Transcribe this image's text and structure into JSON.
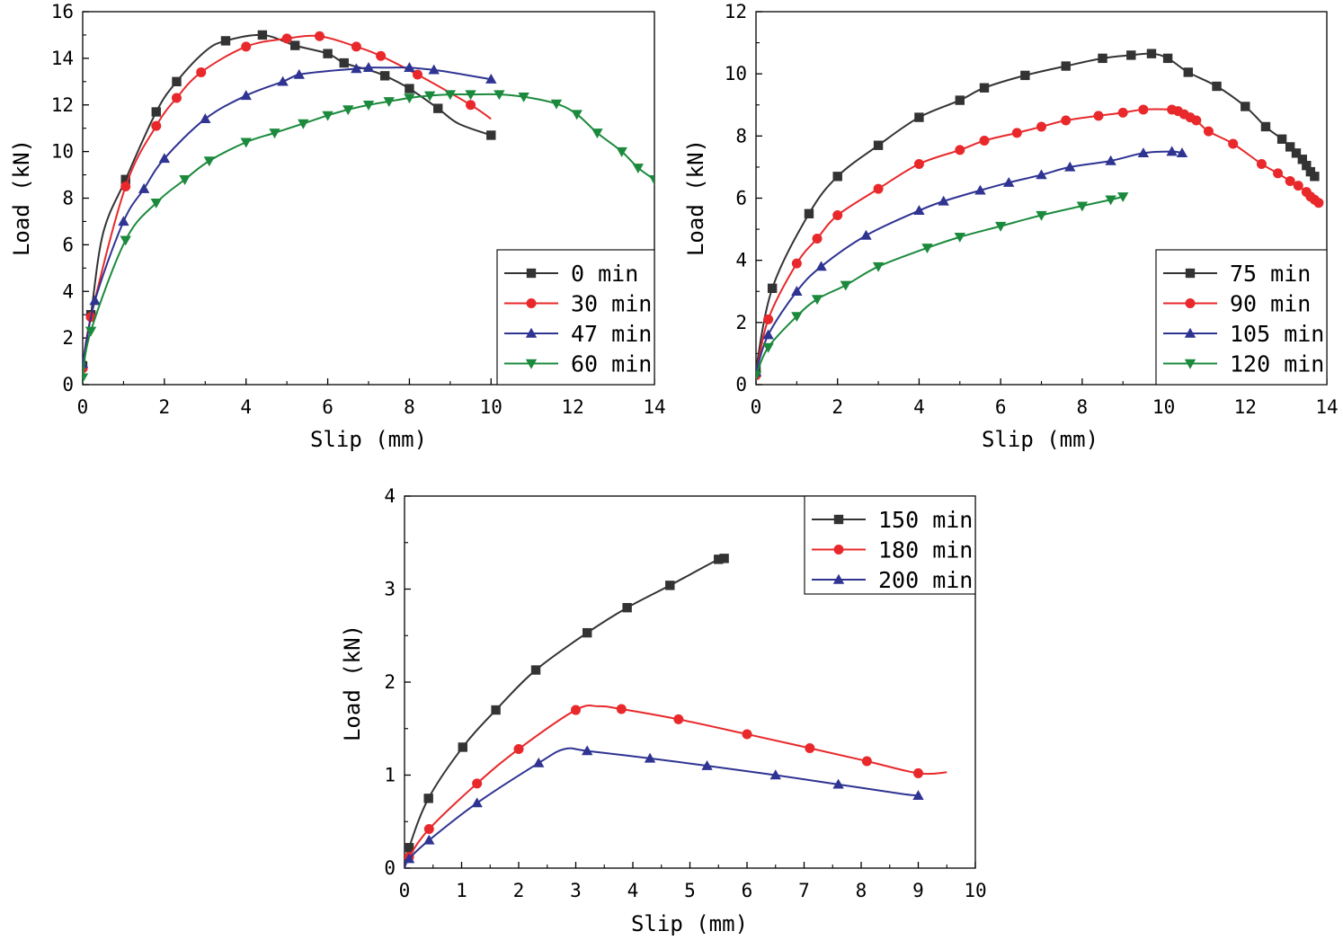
{
  "chart_data": [
    {
      "type": "line",
      "xlabel": "Slip (mm)",
      "ylabel": "Load (kN)",
      "xlim": [
        0,
        14
      ],
      "ylim": [
        0,
        16
      ],
      "xticks": [
        "0",
        "2",
        "4",
        "6",
        "8",
        "10",
        "12",
        "14"
      ],
      "yticks": [
        "0",
        "2",
        "4",
        "6",
        "8",
        "10",
        "12",
        "14",
        "16"
      ],
      "legend_position": "bottom-right",
      "series": [
        {
          "name": "0 min",
          "color": "#333333",
          "marker": "square",
          "x": [
            0,
            0.2,
            0.5,
            1.05,
            1.8,
            2.3,
            3.0,
            3.5,
            4.4,
            5.2,
            6.0,
            6.4,
            7.0,
            7.4,
            8.0,
            8.7,
            9.2,
            10.0
          ],
          "y": [
            0.8,
            3.0,
            6.5,
            8.8,
            11.7,
            13.0,
            14.3,
            14.75,
            15.0,
            14.55,
            14.2,
            13.8,
            13.5,
            13.25,
            12.7,
            11.85,
            11.2,
            10.7
          ],
          "markers_at": [
            0,
            1,
            3,
            4,
            5,
            7,
            8,
            9,
            10,
            11,
            13,
            14,
            15,
            17
          ]
        },
        {
          "name": "30 min",
          "color": "#e8282b",
          "marker": "circle",
          "x": [
            0,
            0.2,
            1.05,
            1.8,
            2.3,
            2.9,
            4.0,
            5.0,
            5.8,
            6.7,
            7.3,
            8.2,
            9.5,
            10.0
          ],
          "y": [
            0.7,
            2.9,
            8.5,
            11.1,
            12.3,
            13.4,
            14.5,
            14.85,
            14.95,
            14.5,
            14.1,
            13.3,
            12.0,
            11.4
          ],
          "markers_at": [
            0,
            1,
            2,
            3,
            4,
            5,
            6,
            7,
            8,
            9,
            10,
            11,
            12
          ]
        },
        {
          "name": "47 min",
          "color": "#2f3392",
          "marker": "triangle-up",
          "x": [
            0,
            0.3,
            1.0,
            1.5,
            2.0,
            3.0,
            4.0,
            4.9,
            5.3,
            6.0,
            6.7,
            7.0,
            7.5,
            8.0,
            8.6,
            9.0,
            10.0
          ],
          "y": [
            0.9,
            3.6,
            7.0,
            8.4,
            9.7,
            11.4,
            12.4,
            13.0,
            13.3,
            13.45,
            13.55,
            13.6,
            13.6,
            13.6,
            13.5,
            13.4,
            13.1
          ],
          "markers_at": [
            0,
            1,
            2,
            3,
            4,
            5,
            6,
            7,
            8,
            10,
            11,
            13,
            14,
            16
          ]
        },
        {
          "name": "60 min",
          "color": "#1b8a3c",
          "marker": "triangle-down",
          "x": [
            0,
            0.2,
            1.05,
            1.8,
            2.5,
            3.1,
            4.0,
            4.7,
            5.4,
            6.0,
            6.5,
            7.0,
            7.5,
            8.0,
            8.5,
            9.0,
            9.5,
            10.2,
            10.8,
            11.6,
            12.1,
            12.6,
            13.2,
            13.6,
            14.0
          ],
          "y": [
            0.3,
            2.3,
            6.2,
            7.8,
            8.8,
            9.6,
            10.4,
            10.8,
            11.2,
            11.55,
            11.8,
            12.0,
            12.15,
            12.3,
            12.4,
            12.45,
            12.45,
            12.45,
            12.35,
            12.05,
            11.6,
            10.8,
            10.0,
            9.3,
            8.8
          ],
          "markers_at": [
            0,
            1,
            2,
            3,
            4,
            5,
            6,
            7,
            8,
            9,
            10,
            11,
            12,
            13,
            14,
            15,
            16,
            17,
            18,
            19,
            20,
            21,
            22,
            23,
            24
          ]
        }
      ]
    },
    {
      "type": "line",
      "xlabel": "Slip (mm)",
      "ylabel": "Load (kN)",
      "xlim": [
        0,
        14
      ],
      "ylim": [
        0,
        12
      ],
      "xticks": [
        "0",
        "2",
        "4",
        "6",
        "8",
        "10",
        "12",
        "14"
      ],
      "yticks": [
        "0",
        "2",
        "4",
        "6",
        "8",
        "10",
        "12"
      ],
      "legend_position": "bottom-right",
      "series": [
        {
          "name": "75 min",
          "color": "#333333",
          "marker": "square",
          "x": [
            0,
            0.4,
            1.3,
            2.0,
            3.0,
            4.0,
            5.0,
            5.6,
            6.6,
            7.6,
            8.5,
            9.2,
            9.7,
            10.1,
            10.6,
            11.3,
            12.0,
            12.5,
            12.9,
            13.1,
            13.25,
            13.4,
            13.5,
            13.6,
            13.7
          ],
          "y": [
            0.5,
            3.1,
            5.5,
            6.7,
            7.7,
            8.6,
            9.15,
            9.55,
            9.95,
            10.25,
            10.5,
            10.6,
            10.65,
            10.5,
            10.05,
            9.6,
            8.95,
            8.3,
            7.9,
            7.65,
            7.45,
            7.25,
            7.05,
            6.85,
            6.7
          ],
          "markers_at": [
            0,
            1,
            2,
            3,
            4,
            5,
            6,
            7,
            8,
            9,
            10,
            11,
            12,
            13,
            14,
            15,
            16,
            17,
            18,
            19,
            20,
            21,
            22,
            23,
            24
          ]
        },
        {
          "name": "90 min",
          "color": "#e8282b",
          "marker": "circle",
          "x": [
            0,
            0.3,
            1.0,
            1.5,
            2.0,
            3.0,
            4.0,
            5.0,
            5.6,
            6.4,
            7.0,
            7.6,
            8.4,
            9.0,
            9.5,
            10.2,
            10.35,
            10.5,
            10.65,
            10.8,
            11.1,
            11.7,
            12.4,
            12.8,
            13.1,
            13.3,
            13.5,
            13.6,
            13.7,
            13.8
          ],
          "y": [
            0.3,
            2.1,
            3.9,
            4.7,
            5.45,
            6.3,
            7.1,
            7.55,
            7.85,
            8.1,
            8.3,
            8.5,
            8.65,
            8.75,
            8.85,
            8.85,
            8.8,
            8.7,
            8.6,
            8.5,
            8.15,
            7.75,
            7.1,
            6.8,
            6.55,
            6.4,
            6.2,
            6.05,
            5.95,
            5.85
          ],
          "markers_at": [
            0,
            1,
            2,
            3,
            4,
            5,
            6,
            7,
            8,
            9,
            10,
            11,
            12,
            13,
            14,
            15,
            16,
            17,
            18,
            19,
            20,
            21,
            22,
            23,
            24,
            25,
            26,
            27,
            28,
            29
          ]
        },
        {
          "name": "105 min",
          "color": "#2f3392",
          "marker": "triangle-up",
          "x": [
            0,
            0.3,
            1.0,
            1.6,
            2.7,
            4.0,
            4.6,
            5.5,
            6.2,
            7.0,
            7.7,
            8.7,
            9.5,
            10.2,
            10.45
          ],
          "y": [
            0.4,
            1.6,
            3.0,
            3.8,
            4.8,
            5.6,
            5.9,
            6.25,
            6.5,
            6.75,
            7.0,
            7.2,
            7.45,
            7.5,
            7.45
          ],
          "markers_at": [
            0,
            1,
            2,
            3,
            4,
            5,
            6,
            7,
            8,
            9,
            10,
            11,
            12,
            13,
            14
          ]
        },
        {
          "name": "120 min",
          "color": "#1b8a3c",
          "marker": "triangle-down",
          "x": [
            0,
            0.3,
            1.0,
            1.5,
            2.2,
            3.0,
            4.2,
            5.0,
            6.0,
            7.0,
            8.0,
            8.7,
            9.0
          ],
          "y": [
            0.3,
            1.2,
            2.2,
            2.75,
            3.2,
            3.8,
            4.4,
            4.75,
            5.1,
            5.45,
            5.75,
            5.95,
            6.05
          ],
          "markers_at": [
            0,
            1,
            2,
            3,
            4,
            5,
            6,
            7,
            8,
            9,
            10,
            11,
            12
          ]
        }
      ]
    },
    {
      "type": "line",
      "xlabel": "Slip (mm)",
      "ylabel": "Load (kN)",
      "xlim": [
        0,
        10
      ],
      "ylim": [
        0,
        4
      ],
      "xticks": [
        "0",
        "1",
        "2",
        "3",
        "4",
        "5",
        "6",
        "7",
        "8",
        "9",
        "10"
      ],
      "yticks": [
        "0",
        "1",
        "2",
        "3",
        "4"
      ],
      "legend_position": "top-right",
      "series": [
        {
          "name": "150 min",
          "color": "#333333",
          "marker": "square",
          "x": [
            0,
            0.08,
            0.42,
            1.02,
            1.6,
            2.3,
            3.2,
            3.9,
            4.65,
            5.5,
            5.6
          ],
          "y": [
            0,
            0.22,
            0.75,
            1.3,
            1.7,
            2.13,
            2.53,
            2.8,
            3.04,
            3.32,
            3.33
          ],
          "markers_at": [
            1,
            2,
            3,
            4,
            5,
            6,
            7,
            8,
            9,
            10
          ]
        },
        {
          "name": "180 min",
          "color": "#e8282b",
          "marker": "circle",
          "x": [
            0,
            0.08,
            0.43,
            1.27,
            2.0,
            3.0,
            3.4,
            3.8,
            4.8,
            6.0,
            7.1,
            8.1,
            9.0,
            9.5
          ],
          "y": [
            0,
            0.12,
            0.42,
            0.91,
            1.28,
            1.7,
            1.74,
            1.71,
            1.6,
            1.44,
            1.29,
            1.15,
            1.02,
            1.03
          ],
          "markers_at": [
            1,
            2,
            3,
            4,
            5,
            7,
            8,
            9,
            10,
            11,
            12
          ]
        },
        {
          "name": "200 min",
          "color": "#2f3392",
          "marker": "triangle-up",
          "x": [
            0,
            0.08,
            0.43,
            1.27,
            2.35,
            2.8,
            3.2,
            4.3,
            5.3,
            6.5,
            7.6,
            8.7,
            9.0
          ],
          "y": [
            0,
            0.1,
            0.3,
            0.7,
            1.13,
            1.28,
            1.26,
            1.18,
            1.1,
            1.0,
            0.9,
            0.8,
            0.78
          ],
          "markers_at": [
            1,
            2,
            3,
            4,
            6,
            7,
            8,
            9,
            10,
            12
          ]
        }
      ]
    }
  ]
}
